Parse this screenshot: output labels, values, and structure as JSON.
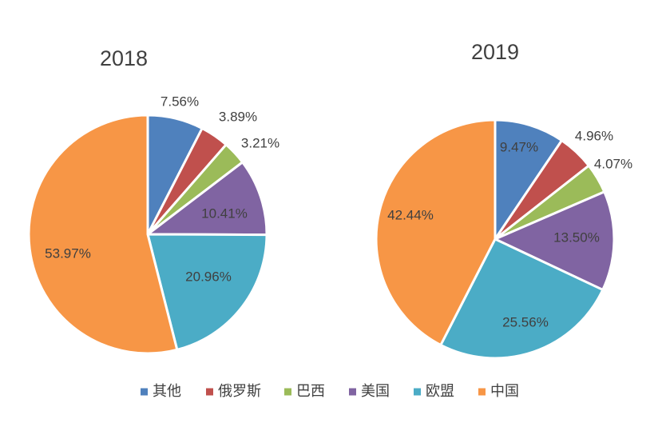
{
  "chart_data": [
    {
      "type": "pie",
      "title": "2018",
      "categories": [
        "其他",
        "俄罗斯",
        "巴西",
        "美国",
        "欧盟",
        "中国"
      ],
      "values": [
        7.56,
        3.89,
        3.21,
        10.41,
        20.96,
        53.97
      ],
      "data_labels": [
        "7.56%",
        "3.89%",
        "3.21%",
        "10.41%",
        "20.96%",
        "53.97%"
      ]
    },
    {
      "type": "pie",
      "title": "2019",
      "categories": [
        "其他",
        "俄罗斯",
        "巴西",
        "美国",
        "欧盟",
        "中国"
      ],
      "values": [
        9.47,
        4.96,
        4.07,
        13.5,
        25.56,
        42.44
      ],
      "data_labels": [
        "9.47%",
        "4.96%",
        "4.07%",
        "13.50%",
        "25.56%",
        "42.44%"
      ]
    }
  ],
  "legend": {
    "position": "bottom",
    "items": [
      {
        "label": "其他",
        "color": "#4F81BD"
      },
      {
        "label": "俄罗斯",
        "color": "#C0504D"
      },
      {
        "label": "巴西",
        "color": "#9BBB59"
      },
      {
        "label": "美国",
        "color": "#8064A2"
      },
      {
        "label": "欧盟",
        "color": "#4BACC6"
      },
      {
        "label": "中国",
        "color": "#F79646"
      }
    ]
  },
  "colors": [
    "#4F81BD",
    "#C0504D",
    "#9BBB59",
    "#8064A2",
    "#4BACC6",
    "#F79646"
  ]
}
